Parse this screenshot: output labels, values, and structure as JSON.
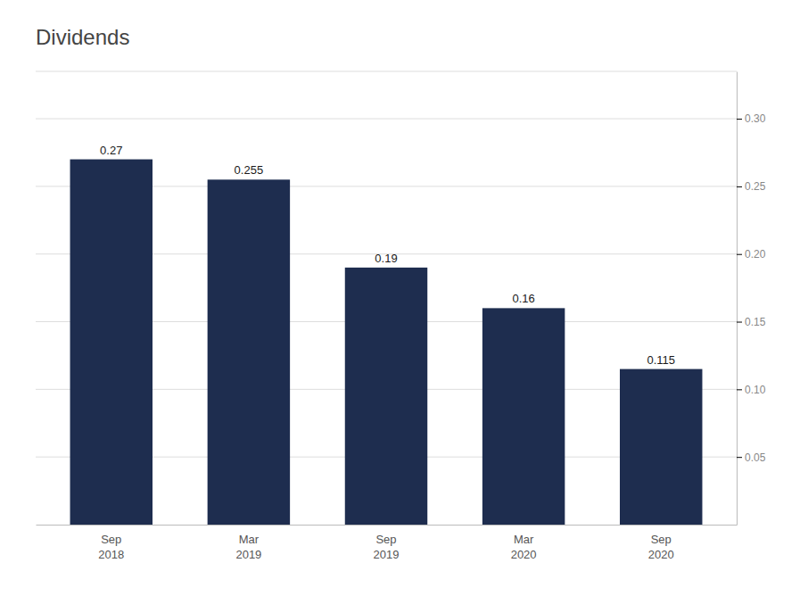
{
  "chart_data": {
    "type": "bar",
    "title": "Dividends",
    "categories": [
      "Sep\n2018",
      "Mar\n2019",
      "Sep\n2019",
      "Mar\n2020",
      "Sep\n2020"
    ],
    "values": [
      0.27,
      0.255,
      0.19,
      0.16,
      0.115
    ],
    "color": "#1e2d4f",
    "ylim": [
      0,
      0.335
    ],
    "yticks": [
      0.05,
      {
        "value": 0.1,
        "label": "0.10"
      },
      0.15,
      {
        "value": 0.2,
        "label": "0.20"
      },
      0.25,
      {
        "value": 0.3,
        "label": "0.30"
      }
    ],
    "grid": true,
    "data_labels": true
  }
}
